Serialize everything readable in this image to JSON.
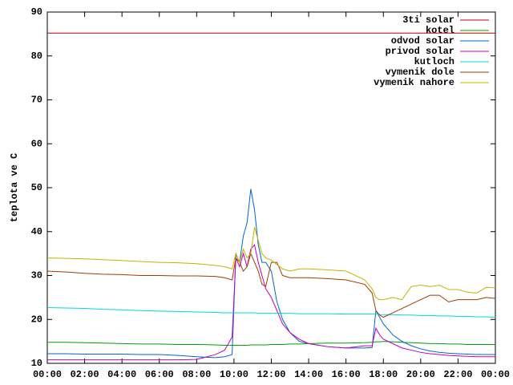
{
  "chart_data": {
    "type": "line",
    "ylabel": "teplota ve C",
    "x": [
      0,
      1,
      2,
      3,
      4,
      5,
      6,
      7,
      8,
      9,
      9.5,
      9.9,
      10.1,
      10.3,
      10.5,
      10.7,
      10.9,
      11.1,
      11.3,
      11.5,
      11.7,
      12,
      12.3,
      12.6,
      13,
      13.5,
      14,
      15,
      16,
      17,
      17.4,
      17.6,
      17.8,
      18,
      18.5,
      19,
      19.5,
      20,
      20.5,
      21,
      21.5,
      22,
      22.5,
      23,
      23.5,
      24
    ],
    "xlim": [
      0,
      24
    ],
    "xticks": [
      {
        "value": 0,
        "label": "00:00"
      },
      {
        "value": 2,
        "label": "02:00"
      },
      {
        "value": 4,
        "label": "04:00"
      },
      {
        "value": 6,
        "label": "06:00"
      },
      {
        "value": 8,
        "label": "08:00"
      },
      {
        "value": 10,
        "label": "10:00"
      },
      {
        "value": 12,
        "label": "12:00"
      },
      {
        "value": 14,
        "label": "14:00"
      },
      {
        "value": 16,
        "label": "16:00"
      },
      {
        "value": 18,
        "label": "18:00"
      },
      {
        "value": 20,
        "label": "20:00"
      },
      {
        "value": 22,
        "label": "22:00"
      },
      {
        "value": 24,
        "label": "00:00"
      }
    ],
    "ylim": [
      10,
      90
    ],
    "yticks": [
      10,
      20,
      30,
      40,
      50,
      60,
      70,
      80,
      90
    ],
    "grid": false,
    "legend": "top-right",
    "series": [
      {
        "name": "3ti solar",
        "color": "#c00000",
        "values": [
          85.2,
          85.2,
          85.2,
          85.2,
          85.2,
          85.2,
          85.2,
          85.2,
          85.2,
          85.2,
          85.2,
          85.2,
          85.2,
          85.2,
          85.2,
          85.2,
          85.2,
          85.2,
          85.2,
          85.2,
          85.2,
          85.2,
          85.2,
          85.2,
          85.2,
          85.2,
          85.2,
          85.2,
          85.2,
          85.2,
          85.2,
          85.2,
          85.2,
          85.2,
          85.2,
          85.2,
          85.2,
          85.2,
          85.2,
          85.2,
          85.2,
          85.2,
          85.2,
          85.2,
          85.2,
          85.2
        ]
      },
      {
        "name": "kotel",
        "color": "#00a000",
        "values": [
          14.8,
          14.8,
          14.7,
          14.6,
          14.5,
          14.4,
          14.4,
          14.3,
          14.3,
          14.2,
          14.1,
          14.1,
          14.1,
          14.1,
          14.1,
          14.1,
          14.2,
          14.2,
          14.2,
          14.2,
          14.2,
          14.3,
          14.3,
          14.3,
          14.4,
          14.4,
          14.5,
          14.6,
          14.6,
          14.7,
          14.8,
          14.9,
          14.9,
          15,
          14.9,
          14.8,
          14.7,
          14.6,
          14.5,
          14.5,
          14.4,
          14.4,
          14.3,
          14.3,
          14.3,
          14.3
        ]
      },
      {
        "name": "odvod solar",
        "color": "#0066cc",
        "values": [
          12.2,
          12.2,
          12.1,
          12.1,
          12.1,
          12,
          12,
          11.8,
          11.5,
          11.3,
          11.5,
          12,
          35,
          33,
          39,
          42,
          49.7,
          45,
          37,
          33,
          33,
          31,
          24,
          20,
          17,
          15,
          14.5,
          13.8,
          13.5,
          13.5,
          13.6,
          22,
          20.5,
          19,
          16.5,
          15,
          14,
          13.3,
          12.8,
          12.5,
          12.3,
          12.2,
          12.1,
          12,
          12,
          12
        ]
      },
      {
        "name": "privod solar",
        "color": "#c000c0",
        "values": [
          10.8,
          10.8,
          10.8,
          10.8,
          10.8,
          10.8,
          10.8,
          10.8,
          10.9,
          12,
          13,
          16,
          34,
          32,
          35,
          32,
          36,
          37,
          33,
          30,
          27,
          25,
          22,
          19,
          17,
          15.5,
          14.5,
          13.8,
          13.5,
          14,
          14,
          18,
          16.5,
          15.5,
          14.5,
          13.5,
          13,
          12.5,
          12.2,
          12,
          11.8,
          11.7,
          11.6,
          11.5,
          11.5,
          11.5
        ]
      },
      {
        "name": "kutloch",
        "color": "#00d8d8",
        "values": [
          22.7,
          22.6,
          22.5,
          22.3,
          22.2,
          22,
          21.9,
          21.8,
          21.7,
          21.6,
          21.5,
          21.5,
          21.5,
          21.5,
          21.5,
          21.5,
          21.5,
          21.5,
          21.4,
          21.4,
          21.4,
          21.4,
          21.4,
          21.4,
          21.4,
          21.3,
          21.3,
          21.3,
          21.2,
          21.2,
          21.2,
          21.3,
          21.1,
          21.1,
          21.1,
          21,
          21,
          20.9,
          20.9,
          20.8,
          20.8,
          20.7,
          20.7,
          20.6,
          20.6,
          20.5
        ]
      },
      {
        "name": "vymenik dole",
        "color": "#a03c00",
        "values": [
          31,
          30.8,
          30.5,
          30.3,
          30.2,
          30,
          30,
          29.9,
          29.9,
          29.8,
          29.5,
          29,
          34,
          33,
          31,
          32,
          35,
          33,
          31,
          28,
          27.5,
          33,
          33,
          30,
          29.5,
          29.5,
          29.5,
          29.3,
          29,
          28,
          26,
          22,
          21,
          20.5,
          21.5,
          22.5,
          23.5,
          24.5,
          25.5,
          25.5,
          24,
          24.5,
          24.5,
          24.5,
          25,
          24.8
        ]
      },
      {
        "name": "vymenik nahore",
        "color": "#c0b400",
        "values": [
          34,
          33.9,
          33.8,
          33.6,
          33.4,
          33.2,
          33,
          32.9,
          32.7,
          32.3,
          32,
          31.5,
          35,
          33,
          36,
          34,
          35,
          41,
          38,
          35,
          34,
          33.5,
          32.5,
          31.5,
          31,
          31.5,
          31.5,
          31.3,
          31,
          29,
          27,
          25,
          24.5,
          24.5,
          25,
          24.5,
          27.5,
          27.8,
          27.5,
          27.8,
          26.8,
          26.8,
          26.2,
          26,
          27.3,
          27.2
        ]
      }
    ]
  }
}
